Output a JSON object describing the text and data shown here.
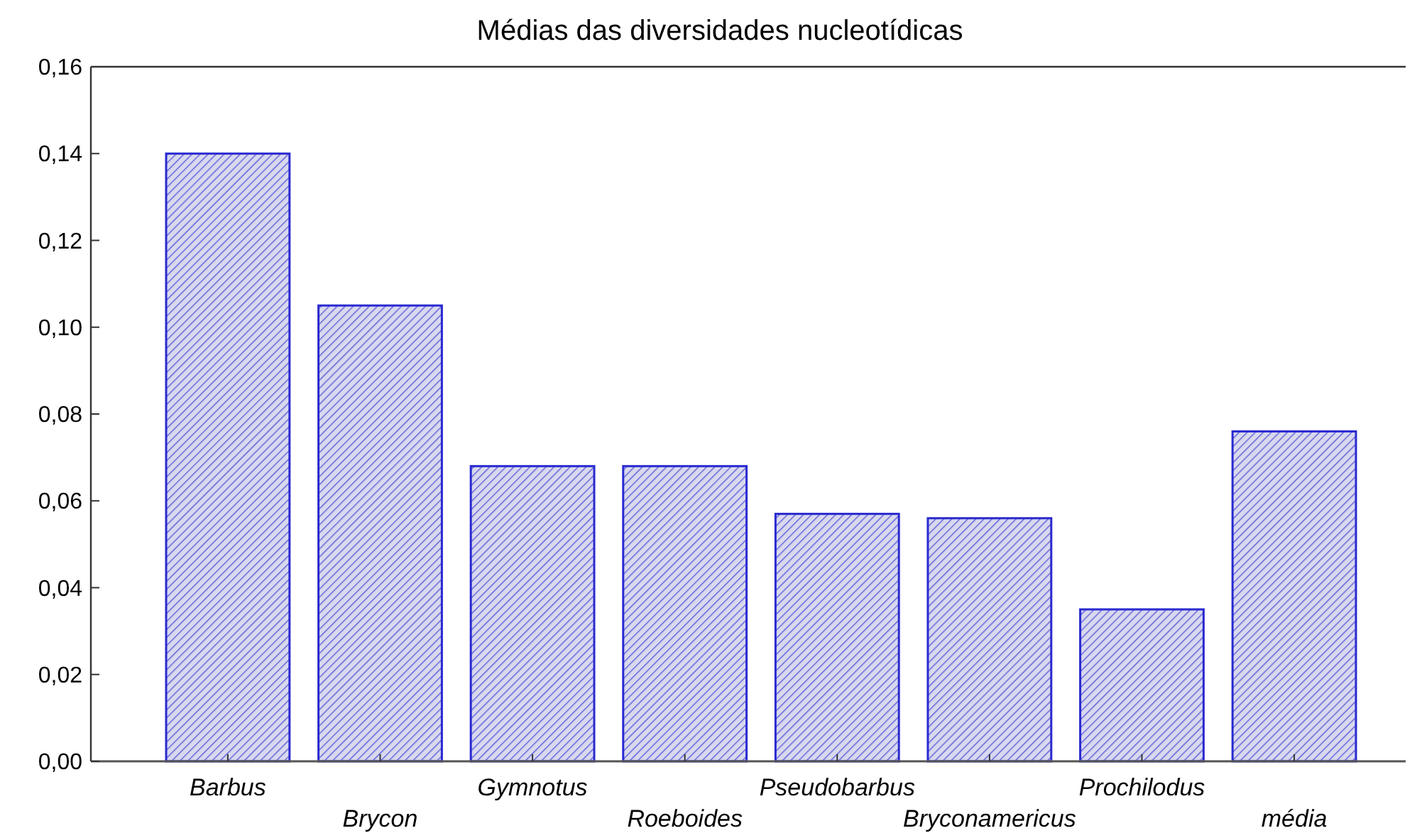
{
  "chart_data": {
    "type": "bar",
    "title": "Médias das diversidades nucleotídicas",
    "categories": [
      "Barbus",
      "Brycon",
      "Gymnotus",
      "Roeboides",
      "Pseudobarbus",
      "Bryconamericus",
      "Prochilodus",
      "média"
    ],
    "values": [
      0.14,
      0.105,
      0.068,
      0.068,
      0.057,
      0.056,
      0.035,
      0.076
    ],
    "color": "#2a2ad0",
    "ylim": [
      0,
      0.16
    ],
    "yticks": [
      {
        "value": 0,
        "label": "0,00"
      },
      {
        "value": 0.02,
        "label": "0,02"
      },
      {
        "value": 0.04,
        "label": "0,04"
      },
      {
        "value": 0.06,
        "label": "0,06"
      },
      {
        "value": 0.08,
        "label": "0,08"
      },
      {
        "value": 0.1,
        "label": "0,10"
      },
      {
        "value": 0.12,
        "label": "0,12"
      },
      {
        "value": 0.14,
        "label": "0,14"
      },
      {
        "value": 0.16,
        "label": "0,16"
      }
    ],
    "grid": false
  }
}
